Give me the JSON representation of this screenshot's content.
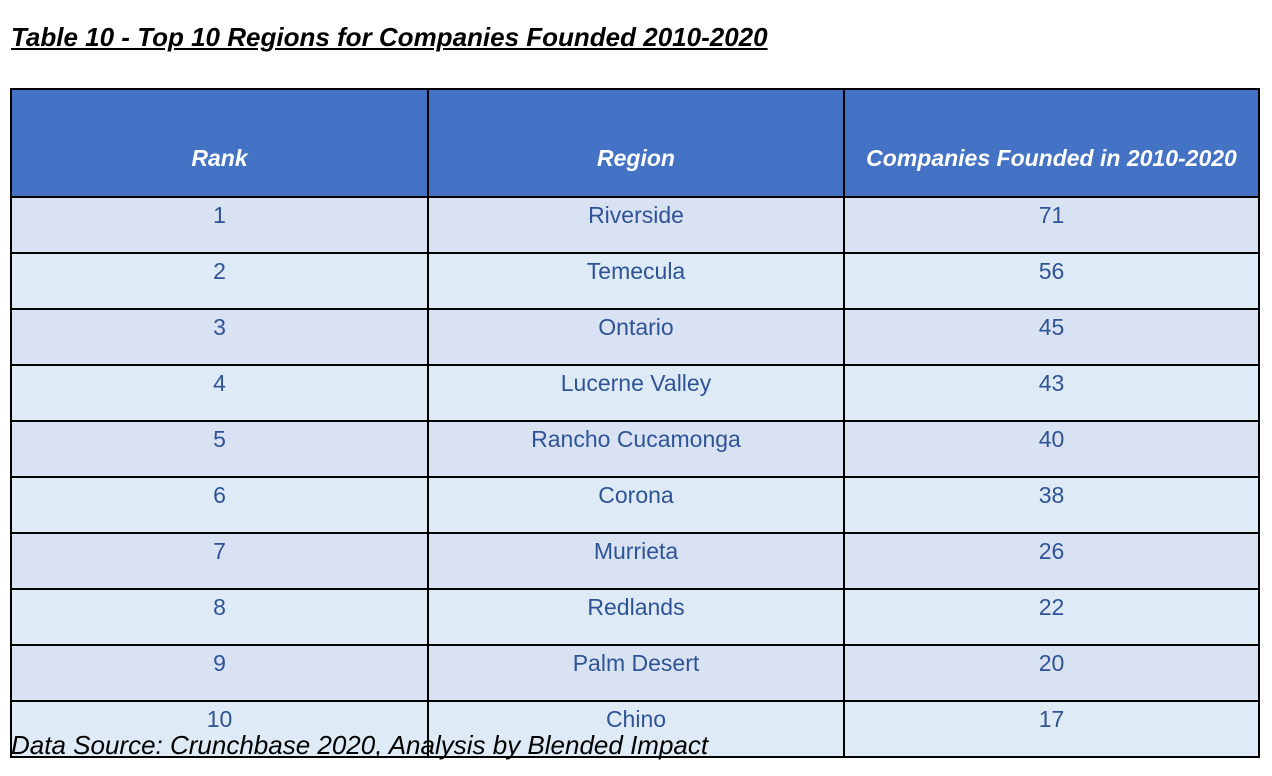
{
  "title": "Table 10 - Top 10 Regions for Companies Founded 2010-2020",
  "headers": [
    "Rank",
    "Region",
    "Companies Founded in 2010-2020"
  ],
  "rows": [
    [
      "1",
      "Riverside",
      "71"
    ],
    [
      "2",
      "Temecula",
      "56"
    ],
    [
      "3",
      "Ontario",
      "45"
    ],
    [
      "4",
      "Lucerne Valley",
      "43"
    ],
    [
      "5",
      "Rancho Cucamonga",
      "40"
    ],
    [
      "6",
      "Corona",
      "38"
    ],
    [
      "7",
      "Murrieta",
      "26"
    ],
    [
      "8",
      "Redlands",
      "22"
    ],
    [
      "9",
      "Palm Desert",
      "20"
    ],
    [
      "10",
      "Chino",
      "17"
    ]
  ],
  "source": "Data Source: Crunchbase 2020, Analysis by Blended Impact",
  "colors": {
    "header_bg": "#4472C4",
    "row_odd": "#D9E2F3",
    "row_even": "#DEEAF6",
    "text": "#2F5496"
  }
}
